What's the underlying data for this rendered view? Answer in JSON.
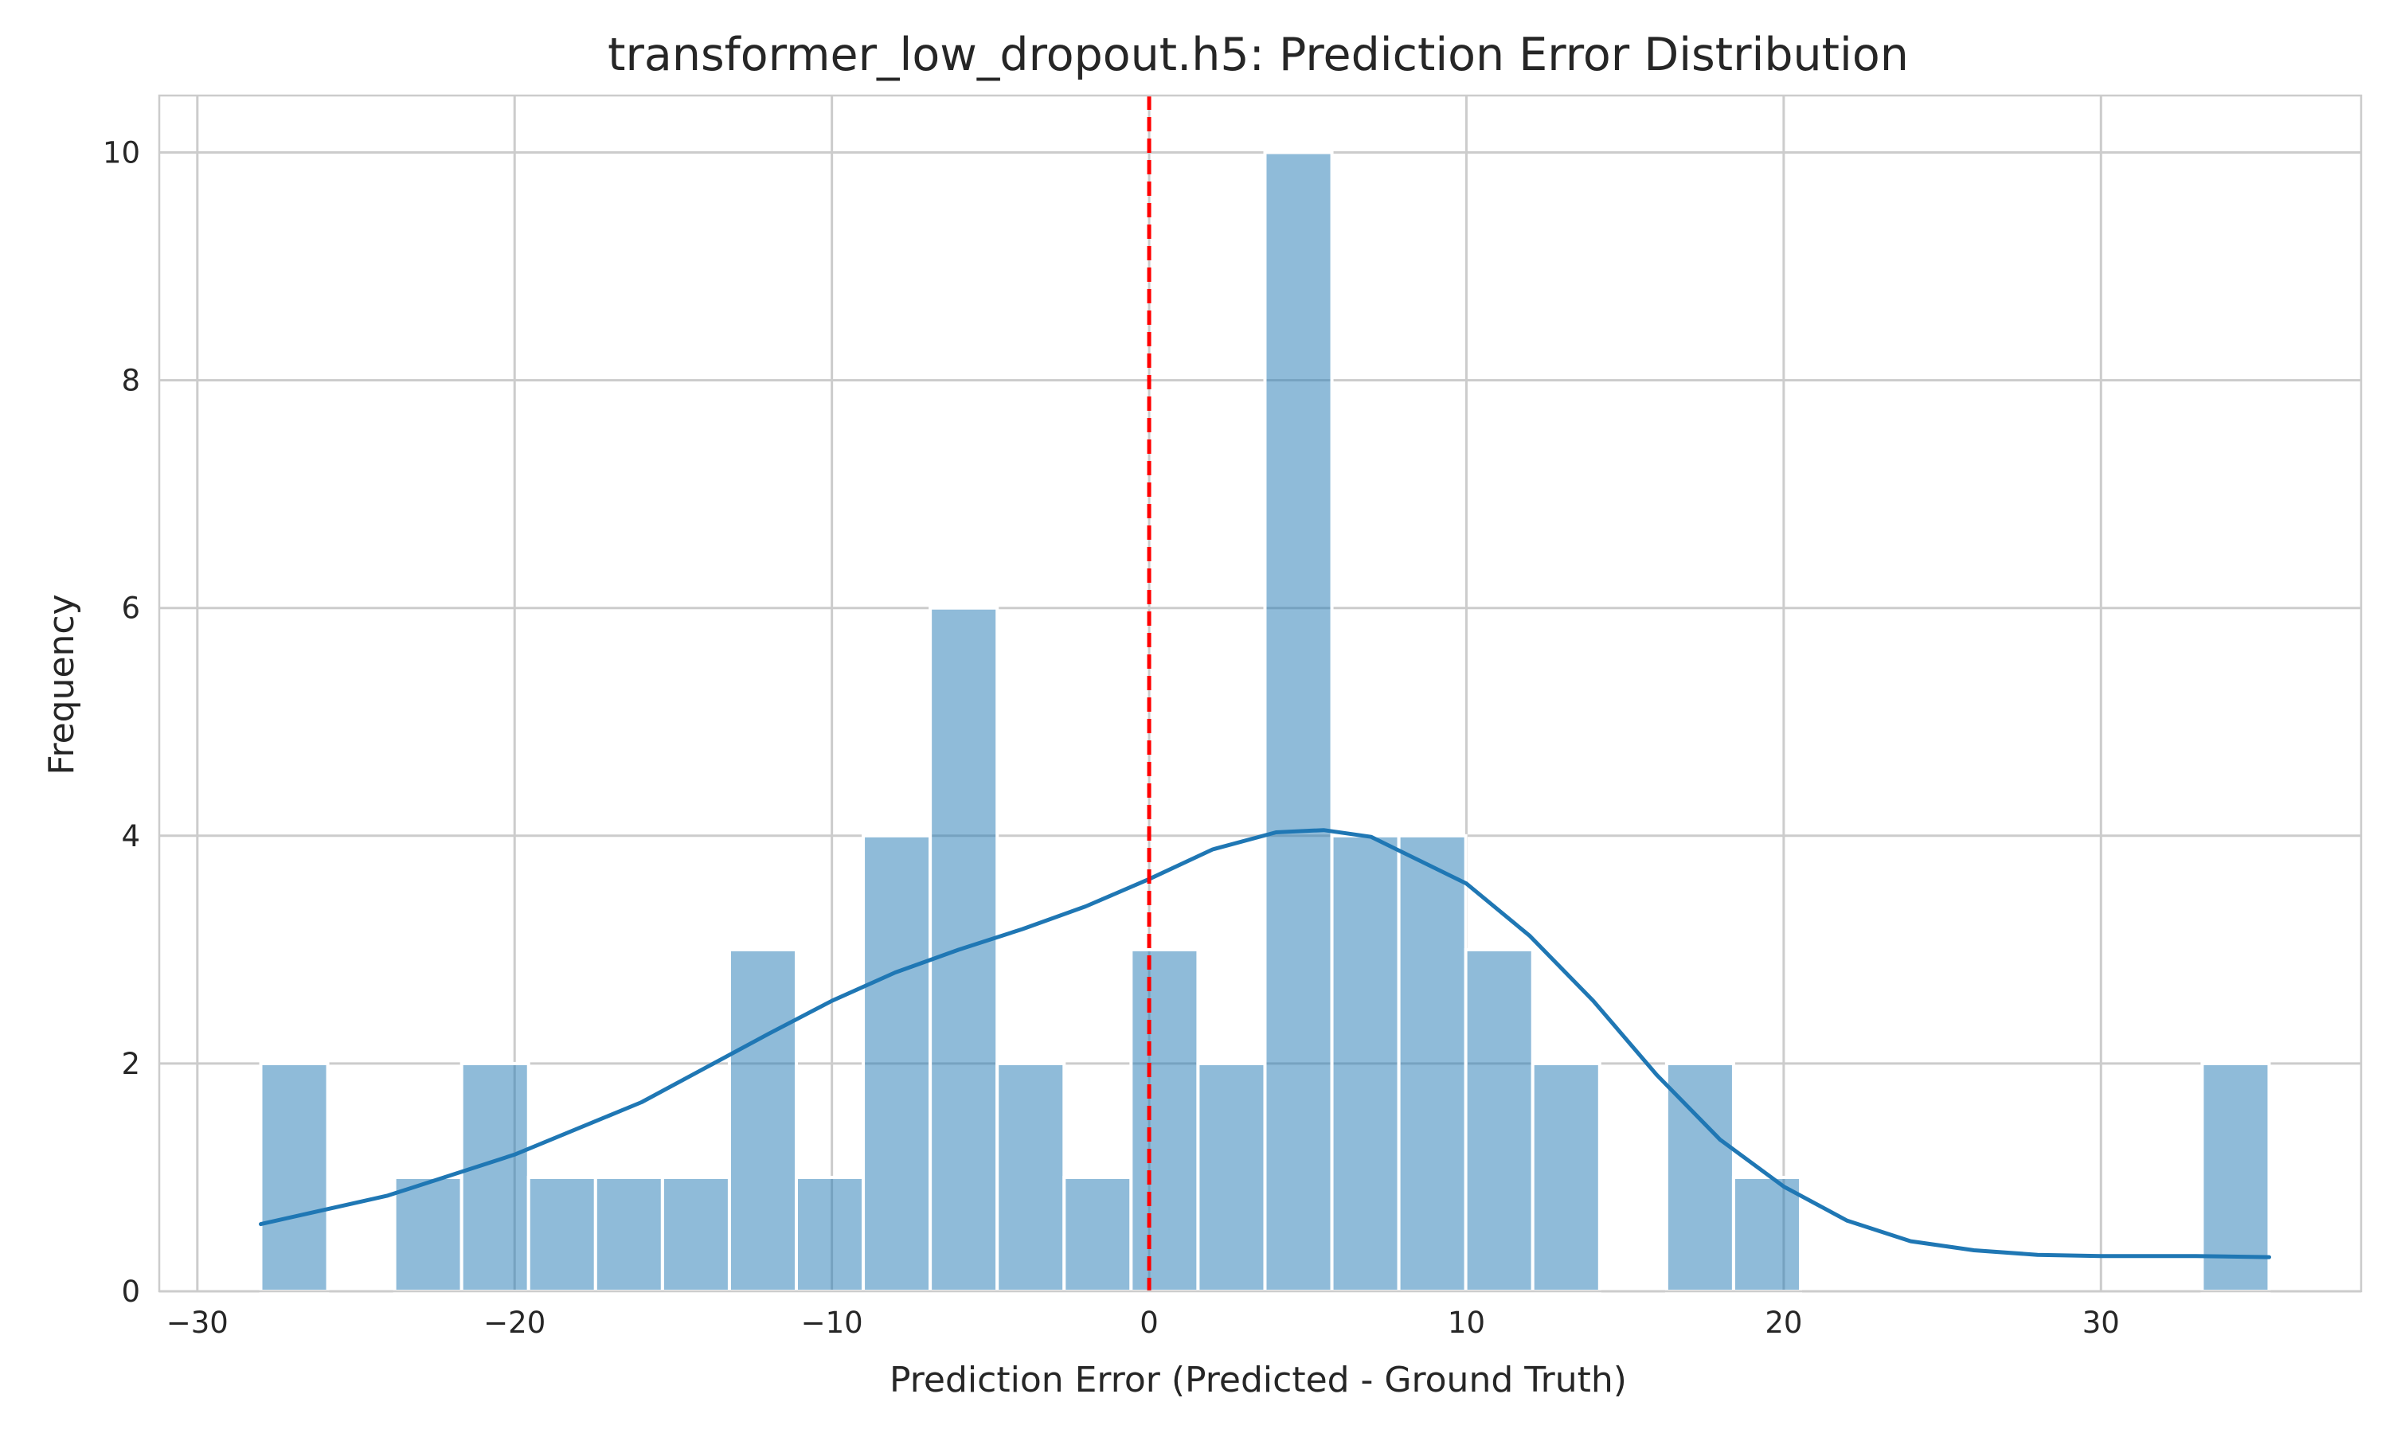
{
  "chart_data": {
    "type": "bar",
    "title": "transformer_low_dropout.h5: Prediction Error Distribution",
    "xlabel": "Prediction Error (Predicted - Ground Truth)",
    "ylabel": "Frequency",
    "xlim": [
      -31.2,
      38.2
    ],
    "ylim": [
      0,
      10.5
    ],
    "xticks": [
      -30,
      -20,
      -10,
      0,
      10,
      20,
      30
    ],
    "xtick_labels": [
      "−30",
      "−20",
      "−10",
      "0",
      "10",
      "20",
      "30"
    ],
    "yticks": [
      0,
      2,
      4,
      6,
      8,
      10
    ],
    "ytick_labels": [
      "0",
      "2",
      "4",
      "6",
      "8",
      "10"
    ],
    "grid": true,
    "bar_color": "#1f77b4",
    "bin_edges": [
      -28.0,
      -25.89,
      -23.78,
      -21.67,
      -19.56,
      -17.45,
      -15.34,
      -13.23,
      -11.12,
      -9.01,
      -6.9,
      -4.79,
      -2.68,
      -0.57,
      1.54,
      3.65,
      5.76,
      7.87,
      9.98,
      12.09,
      14.2,
      16.31,
      18.42,
      20.53,
      22.64,
      24.75,
      26.86,
      28.97,
      31.08,
      33.19,
      35.3
    ],
    "counts": [
      2,
      0,
      1,
      2,
      1,
      1,
      1,
      3,
      1,
      4,
      6,
      2,
      1,
      3,
      2,
      10,
      4,
      4,
      3,
      2,
      0,
      2,
      1,
      0,
      0,
      0,
      0,
      0,
      0,
      2
    ],
    "kde": {
      "color": "#1f77b4",
      "x": [
        -28,
        -24,
        -20,
        -16,
        -12,
        -10,
        -8,
        -6,
        -4,
        -2,
        0,
        2,
        4,
        5.5,
        7,
        10,
        12,
        14,
        16,
        18,
        20,
        22,
        24,
        26,
        28,
        30,
        33,
        35.3
      ],
      "y": [
        0.59,
        0.84,
        1.2,
        1.66,
        2.26,
        2.55,
        2.8,
        3.0,
        3.18,
        3.38,
        3.62,
        3.88,
        4.03,
        4.05,
        3.99,
        3.58,
        3.12,
        2.55,
        1.9,
        1.33,
        0.92,
        0.62,
        0.44,
        0.36,
        0.32,
        0.31,
        0.31,
        0.3
      ]
    },
    "reference_line": {
      "x": 0,
      "color": "#ff0000",
      "style": "dashed"
    }
  }
}
